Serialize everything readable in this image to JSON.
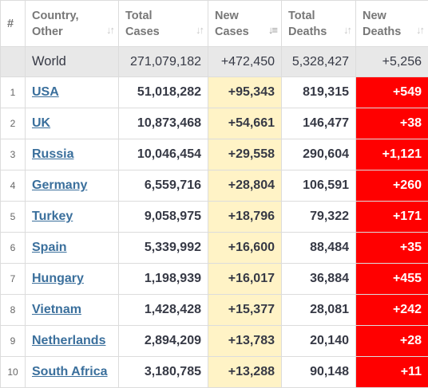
{
  "headers": {
    "num": "#",
    "country": [
      "Country,",
      "Other"
    ],
    "total_cases": [
      "Total",
      "Cases"
    ],
    "new_cases": [
      "New",
      "Cases"
    ],
    "total_deaths": [
      "Total",
      "Deaths"
    ],
    "new_deaths": [
      "New",
      "Deaths"
    ]
  },
  "world": {
    "name": "World",
    "total_cases": "271,079,182",
    "new_cases": "+472,450",
    "total_deaths": "5,328,427",
    "new_deaths": "+5,256"
  },
  "rows": [
    {
      "num": "1",
      "country": "USA",
      "total_cases": "51,018,282",
      "new_cases": "+95,343",
      "total_deaths": "819,315",
      "new_deaths": "+549"
    },
    {
      "num": "2",
      "country": "UK",
      "total_cases": "10,873,468",
      "new_cases": "+54,661",
      "total_deaths": "146,477",
      "new_deaths": "+38"
    },
    {
      "num": "3",
      "country": "Russia",
      "total_cases": "10,046,454",
      "new_cases": "+29,558",
      "total_deaths": "290,604",
      "new_deaths": "+1,121"
    },
    {
      "num": "4",
      "country": "Germany",
      "total_cases": "6,559,716",
      "new_cases": "+28,804",
      "total_deaths": "106,591",
      "new_deaths": "+260"
    },
    {
      "num": "5",
      "country": "Turkey",
      "total_cases": "9,058,975",
      "new_cases": "+18,796",
      "total_deaths": "79,322",
      "new_deaths": "+171"
    },
    {
      "num": "6",
      "country": "Spain",
      "total_cases": "5,339,992",
      "new_cases": "+16,600",
      "total_deaths": "88,484",
      "new_deaths": "+35"
    },
    {
      "num": "7",
      "country": "Hungary",
      "total_cases": "1,198,939",
      "new_cases": "+16,017",
      "total_deaths": "36,884",
      "new_deaths": "+455"
    },
    {
      "num": "8",
      "country": "Vietnam",
      "total_cases": "1,428,428",
      "new_cases": "+15,377",
      "total_deaths": "28,081",
      "new_deaths": "+242"
    },
    {
      "num": "9",
      "country": "Netherlands",
      "total_cases": "2,894,209",
      "new_cases": "+13,783",
      "total_deaths": "20,140",
      "new_deaths": "+28"
    },
    {
      "num": "10",
      "country": "South Africa",
      "total_cases": "3,180,785",
      "new_cases": "+13,288",
      "total_deaths": "90,148",
      "new_deaths": "+11"
    }
  ],
  "icons": {
    "sort": "sort-icon",
    "sort_desc_active": "sort-desc-icon"
  },
  "colors": {
    "new_cases_bg": "#fff3c6",
    "new_deaths_bg": "#ff0000",
    "world_row_bg": "#e8e8e8",
    "country_link": "#3a6f9c"
  }
}
